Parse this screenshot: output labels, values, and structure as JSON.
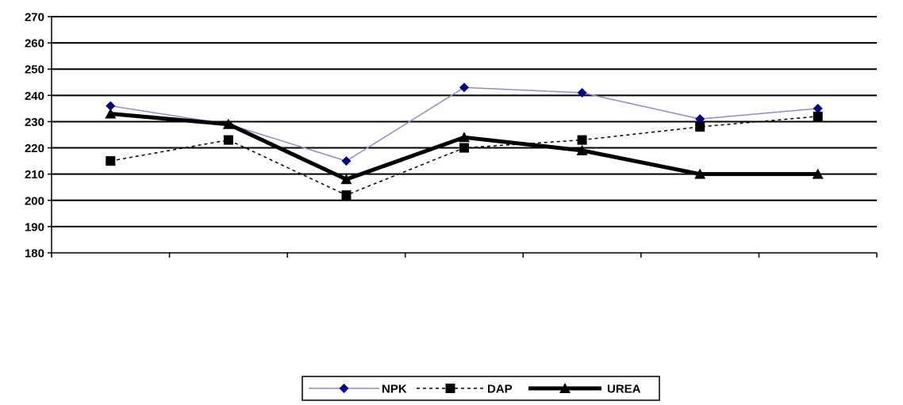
{
  "chart_data": {
    "type": "line",
    "title": "",
    "xlabel": "",
    "ylabel": "",
    "categories": [
      "",
      "",
      "",
      "",
      "",
      "",
      ""
    ],
    "ylim": [
      180,
      270
    ],
    "yticks": [
      180,
      190,
      200,
      210,
      220,
      230,
      240,
      250,
      260,
      270
    ],
    "grid": true,
    "legend_position": "bottom",
    "series": [
      {
        "name": "NPK",
        "values": [
          236,
          229,
          215,
          243,
          241,
          231,
          235
        ],
        "color": "#8a8ec4",
        "marker_color": "#000080",
        "marker": "diamond",
        "line_style": "solid-thin"
      },
      {
        "name": "DAP",
        "values": [
          215,
          223,
          202,
          220,
          223,
          228,
          232
        ],
        "color": "#000000",
        "marker_color": "#000000",
        "marker": "square",
        "line_style": "dashed"
      },
      {
        "name": "UREA",
        "values": [
          233,
          229,
          208,
          224,
          219,
          210,
          210
        ],
        "color": "#000000",
        "marker_color": "#000000",
        "marker": "triangle",
        "line_style": "solid-thick"
      }
    ]
  }
}
